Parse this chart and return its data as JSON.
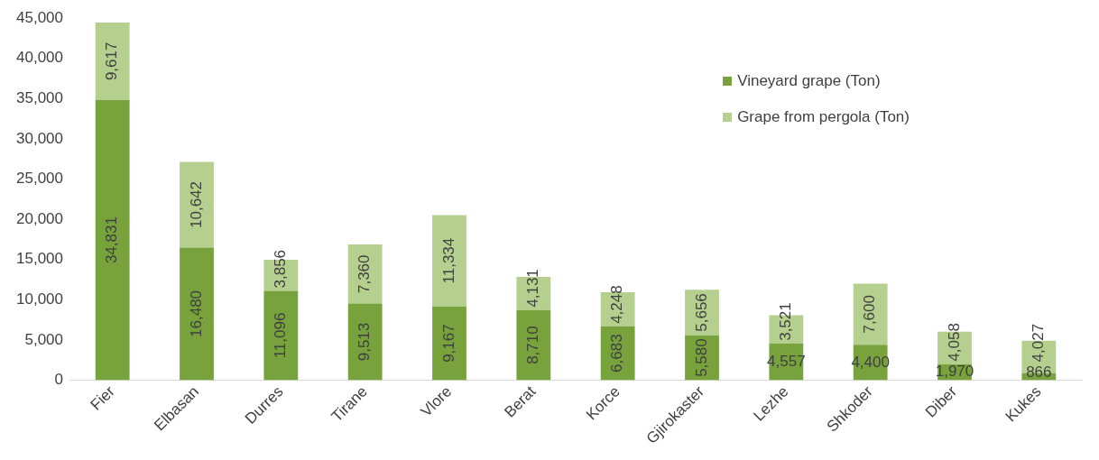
{
  "chart_data": {
    "type": "bar",
    "stacked": true,
    "categories": [
      "Fier",
      "Elbasan",
      "Durres",
      "Tirane",
      "Vlore",
      "Berat",
      "Korce",
      "Gjirokaster",
      "Lezhe",
      "Shkoder",
      "Diber",
      "Kukes"
    ],
    "series": [
      {
        "name": "Vineyard grape (Ton)",
        "color": "#77a23c",
        "values": [
          34831,
          16480,
          11096,
          9513,
          9167,
          8710,
          6683,
          5580,
          4557,
          4400,
          1970,
          866
        ],
        "value_labels": [
          "34,831",
          "16,480",
          "11,096",
          "9,513",
          "9,167",
          "8,710",
          "6,683",
          "5,580",
          "4,557",
          "4,400",
          "1,970",
          "866"
        ]
      },
      {
        "name": "Grape from pergola (Ton)",
        "color": "#b5cf8e",
        "values": [
          9617,
          10642,
          3856,
          7360,
          11334,
          4131,
          4248,
          5656,
          3521,
          7600,
          4058,
          4027
        ],
        "value_labels": [
          "9,617",
          "10,642",
          "3,856",
          "7,360",
          "11,334",
          "4,131",
          "4,248",
          "5,656",
          "3,521",
          "7,600",
          "4,058",
          "4,027"
        ]
      }
    ],
    "ylim": [
      0,
      45000
    ],
    "yticks": [
      0,
      {
        "value": 5000,
        "label": "5,000"
      },
      {
        "value": 10000,
        "label": "10,000"
      },
      {
        "value": 15000,
        "label": "15,000"
      },
      {
        "value": 20000,
        "label": "20,000"
      },
      {
        "value": 25000,
        "label": "25,000"
      },
      {
        "value": 30000,
        "label": "30,000"
      },
      {
        "value": 35000,
        "label": "35,000"
      },
      {
        "value": 40000,
        "label": "40,000"
      },
      {
        "value": 45000,
        "label": "45,000"
      }
    ],
    "grid": false,
    "legend": "top right"
  }
}
